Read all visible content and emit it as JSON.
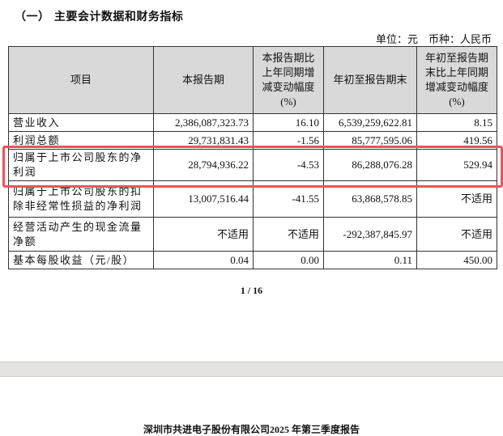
{
  "section_title": "（一） 主要会计数据和财务指标",
  "unit_line": "单位：元　币种：人民币",
  "table": {
    "headers": [
      "项目",
      "本报告期",
      "本报告期比上年同期增减变动幅度(%)",
      "年初至报告期末",
      "年初至报告期末比上年同期增减变动幅度(%)"
    ],
    "rows": [
      [
        "营业收入",
        "2,386,087,323.73",
        "16.10",
        "6,539,259,622.81",
        "8.15"
      ],
      [
        "利润总额",
        "29,731,831.43",
        "-1.56",
        "85,777,595.06",
        "419.56"
      ],
      [
        "归属于上市公司股东的净利润",
        "28,794,936.22",
        "-4.53",
        "86,288,076.28",
        "529.94"
      ],
      [
        "归属于上市公司股东的扣除非经常性损益的净利润",
        "13,007,516.44",
        "-41.55",
        "63,868,578.85",
        "不适用"
      ],
      [
        "经营活动产生的现金流量净额",
        "不适用",
        "不适用",
        "-292,387,845.97",
        "不适用"
      ],
      [
        "基本每股收益（元/股）",
        "0.04",
        "0.00",
        "0.11",
        "450.00"
      ]
    ]
  },
  "highlight_color": "#f0525a",
  "page_number": "1 / 16",
  "footer": "深圳市共进电子股份有限公司2025 年第三季度报告"
}
